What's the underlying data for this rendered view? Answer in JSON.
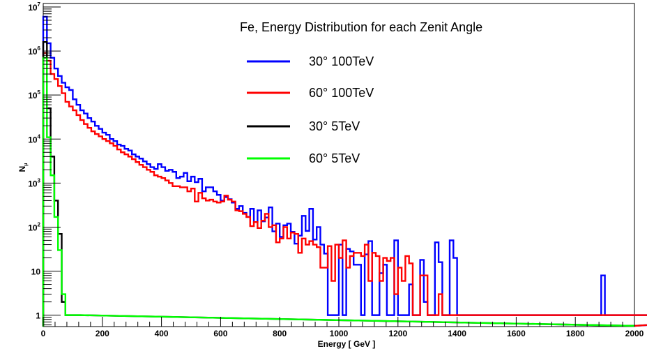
{
  "chart_data": {
    "type": "histogram-step",
    "title": "Fe, Energy Distribution for each Zenit Angle",
    "xlabel": "Energy [ GeV ]",
    "ylabel": "N",
    "ylabel_sub": "μ",
    "xlim": [
      0,
      2000
    ],
    "ylim": [
      0.55,
      12000000
    ],
    "yscale": "log",
    "bin_width": 12.5,
    "x_ticks": [
      0,
      200,
      400,
      600,
      800,
      1000,
      1200,
      1400,
      1600,
      1800,
      2000
    ],
    "x_tick_labels": [
      "0",
      "200",
      "400",
      "600",
      "800",
      "1000",
      "1200",
      "1400",
      "1600",
      "1800",
      "2000"
    ],
    "y_ticks": [
      1,
      10,
      100,
      1000,
      10000,
      100000,
      1000000,
      10000000
    ],
    "y_tick_base": [
      "1",
      "10",
      "10",
      "10",
      "10",
      "10",
      "10",
      "10"
    ],
    "y_tick_exp": [
      "",
      "",
      "2",
      "3",
      "4",
      "5",
      "6",
      "7"
    ],
    "legend_position": "top-right",
    "series": [
      {
        "name": "30° 100TeV",
        "color": "#0000ff",
        "values": [
          6000000,
          1500000,
          700000,
          400000,
          270000,
          190000,
          150000,
          130000,
          80000,
          60000,
          45000,
          38000,
          30000,
          25000,
          20000,
          17000,
          14000,
          12500,
          10000,
          9000,
          7500,
          7000,
          6000,
          5500,
          4500,
          4000,
          3600,
          3100,
          2700,
          2300,
          2100,
          2700,
          2300,
          1900,
          2000,
          1800,
          1300,
          1400,
          1700,
          1100,
          1400,
          1050,
          1250,
          650,
          800,
          800,
          650,
          540,
          400,
          480,
          430,
          360,
          260,
          300,
          210,
          170,
          260,
          130,
          240,
          135,
          165,
          280,
          80,
          120,
          60,
          110,
          120,
          78,
          42,
          64,
          180,
          82,
          260,
          52,
          100,
          40,
          25,
          1,
          1,
          1,
          40,
          1,
          32,
          28,
          14,
          14,
          1,
          24,
          48,
          1,
          1,
          9,
          14,
          1,
          1,
          50,
          1,
          1,
          1,
          5,
          1,
          1,
          18,
          2,
          1,
          1,
          45,
          16,
          1,
          1,
          50,
          20,
          1,
          1,
          1,
          1,
          1,
          1,
          1,
          1,
          1,
          1,
          1,
          1,
          1,
          1,
          1,
          1,
          1,
          1,
          1,
          1,
          1,
          1,
          1,
          1,
          1,
          1,
          1,
          1,
          1,
          1,
          1,
          1,
          1,
          1,
          1,
          1,
          1,
          1,
          1,
          8,
          1,
          1,
          1,
          1,
          1,
          1,
          1,
          1,
          1,
          1,
          1,
          1,
          1,
          1,
          1,
          1,
          1,
          1,
          1,
          1,
          1,
          1,
          1,
          1,
          1,
          1,
          1,
          1,
          1,
          1,
          1,
          1,
          1,
          1,
          1,
          1,
          1,
          1,
          1,
          1,
          1,
          1,
          1,
          1,
          1,
          1,
          1,
          1,
          1,
          1,
          1,
          1,
          1,
          1,
          1
        ]
      },
      {
        "name": "60° 100TeV",
        "color": "#ff0000",
        "values": [
          900000,
          600000,
          300000,
          230000,
          160000,
          110000,
          70000,
          55000,
          45000,
          35000,
          27000,
          22000,
          18000,
          15000,
          13000,
          11500,
          10000,
          9000,
          8000,
          7000,
          5800,
          5000,
          4500,
          4000,
          3500,
          3000,
          2600,
          2300,
          2000,
          1800,
          1500,
          1400,
          1300,
          1150,
          1000,
          850,
          850,
          800,
          800,
          650,
          750,
          380,
          600,
          450,
          400,
          420,
          380,
          360,
          380,
          520,
          420,
          380,
          240,
          230,
          200,
          170,
          105,
          130,
          95,
          140,
          200,
          100,
          110,
          45,
          55,
          100,
          55,
          75,
          70,
          26,
          55,
          40,
          48,
          40,
          35,
          12,
          12,
          37,
          6,
          40,
          20,
          50,
          12,
          22,
          26,
          26,
          22,
          40,
          6,
          26,
          22,
          6,
          20,
          17,
          20,
          3,
          12,
          6,
          22,
          15,
          1,
          1,
          8,
          8,
          1,
          1,
          1,
          3,
          1,
          1,
          1,
          1,
          1,
          1,
          1,
          1,
          1,
          1,
          1,
          1,
          1,
          1,
          1,
          1,
          1,
          1,
          1,
          1,
          1,
          1,
          1,
          1,
          1,
          1,
          1,
          1,
          1,
          1,
          1,
          1,
          1,
          1,
          1,
          1,
          1,
          1,
          1,
          1,
          1,
          1,
          1,
          1,
          1,
          1,
          1,
          1,
          1,
          1,
          1,
          1,
          1,
          1,
          1,
          1,
          1,
          1,
          1,
          1,
          1,
          1,
          1,
          1,
          1,
          1,
          1,
          1,
          1,
          1,
          1,
          1,
          1,
          1,
          1,
          1,
          1,
          1,
          1,
          1,
          1,
          1,
          1,
          1,
          1,
          1,
          1,
          1,
          1,
          1,
          1,
          1,
          1,
          1,
          1,
          1
        ]
      },
      {
        "name": "30° 5TeV",
        "color": "#000000",
        "values": [
          1600000,
          50000,
          4000,
          400,
          70,
          2,
          1,
          1,
          1,
          1
        ]
      },
      {
        "name": "60° 5TeV",
        "color": "#00ff00",
        "values": [
          700000,
          11000,
          1500,
          170,
          30,
          3,
          1,
          1,
          1,
          1
        ]
      }
    ]
  }
}
